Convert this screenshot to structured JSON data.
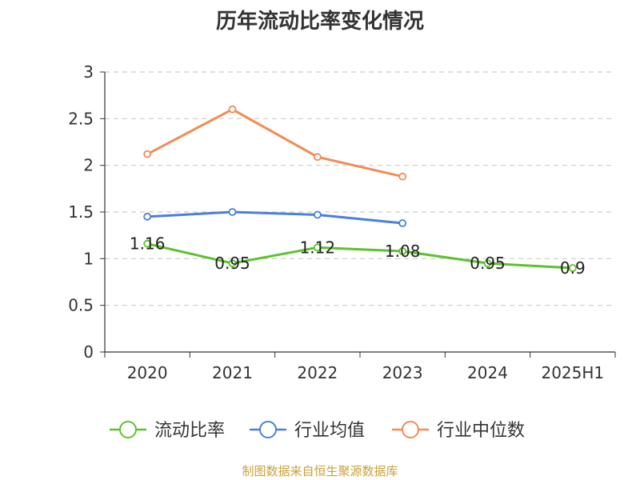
{
  "footer": {
    "source": "制图数据来自恒生聚源数据库"
  },
  "chart_data": {
    "type": "line",
    "title": "历年流动比率变化情况",
    "categories": [
      "2020",
      "2021",
      "2022",
      "2023",
      "2024",
      "2025H1"
    ],
    "ylim": [
      0,
      3
    ],
    "yticks": [
      "0",
      "0.5",
      "1",
      "1.5",
      "2",
      "2.5",
      "3"
    ],
    "grid": true,
    "legend_position": "bottom",
    "series": [
      {
        "name": "流动比率",
        "color": "#5cc22b",
        "values": [
          1.16,
          0.95,
          1.12,
          1.08,
          0.95,
          0.9
        ],
        "labels": [
          "1.16",
          "0.95",
          "1.12",
          "1.08",
          "0.95",
          "0.9"
        ]
      },
      {
        "name": "行业均值",
        "color": "#4a7fdc",
        "values": [
          1.45,
          1.5,
          1.47,
          1.38,
          null,
          null
        ]
      },
      {
        "name": "行业中位数",
        "color": "#f28b54",
        "values": [
          2.12,
          2.6,
          2.09,
          1.88,
          null,
          null
        ]
      }
    ]
  }
}
